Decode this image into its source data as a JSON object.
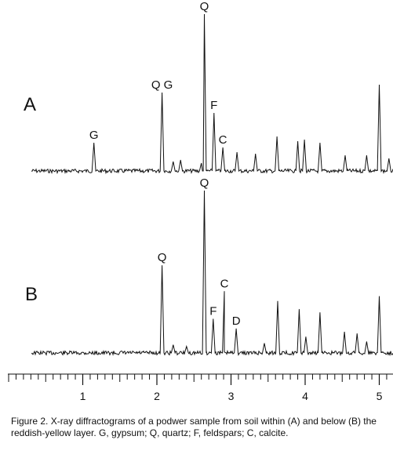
{
  "chart_data": {
    "type": "line",
    "title": "",
    "xlabel": "",
    "ylabel": "",
    "xlim": [
      0,
      5.2
    ],
    "x_ticks": [
      1,
      2,
      3,
      4,
      5
    ],
    "x_minor_step": 0.1,
    "grid": false,
    "line_color": "#111111",
    "panels": [
      {
        "label": "A",
        "peaks": [
          {
            "x": 1.15,
            "height": 0.18,
            "label": "G"
          },
          {
            "x": 2.07,
            "height": 0.5,
            "label": "Q G"
          },
          {
            "x": 2.22,
            "height": 0.06,
            "label": ""
          },
          {
            "x": 2.32,
            "height": 0.07,
            "label": ""
          },
          {
            "x": 2.6,
            "height": 0.05,
            "label": ""
          },
          {
            "x": 2.64,
            "height": 1.0,
            "label": "Q"
          },
          {
            "x": 2.77,
            "height": 0.37,
            "label": "F"
          },
          {
            "x": 2.89,
            "height": 0.15,
            "label": "C"
          },
          {
            "x": 3.08,
            "height": 0.12,
            "label": ""
          },
          {
            "x": 3.33,
            "height": 0.11,
            "label": ""
          },
          {
            "x": 3.62,
            "height": 0.22,
            "label": ""
          },
          {
            "x": 3.9,
            "height": 0.19,
            "label": ""
          },
          {
            "x": 3.99,
            "height": 0.2,
            "label": ""
          },
          {
            "x": 4.2,
            "height": 0.18,
            "label": ""
          },
          {
            "x": 4.54,
            "height": 0.1,
            "label": ""
          },
          {
            "x": 4.83,
            "height": 0.1,
            "label": ""
          },
          {
            "x": 5.0,
            "height": 0.55,
            "label": ""
          },
          {
            "x": 5.13,
            "height": 0.08,
            "label": ""
          }
        ]
      },
      {
        "label": "B",
        "peaks": [
          {
            "x": 2.07,
            "height": 0.54,
            "label": "Q"
          },
          {
            "x": 2.22,
            "height": 0.05,
            "label": ""
          },
          {
            "x": 2.4,
            "height": 0.04,
            "label": ""
          },
          {
            "x": 2.64,
            "height": 1.0,
            "label": "Q"
          },
          {
            "x": 2.76,
            "height": 0.21,
            "label": "F"
          },
          {
            "x": 2.91,
            "height": 0.38,
            "label": "C"
          },
          {
            "x": 3.07,
            "height": 0.15,
            "label": "D"
          },
          {
            "x": 3.45,
            "height": 0.06,
            "label": ""
          },
          {
            "x": 3.63,
            "height": 0.32,
            "label": ""
          },
          {
            "x": 3.92,
            "height": 0.27,
            "label": ""
          },
          {
            "x": 4.01,
            "height": 0.1,
            "label": ""
          },
          {
            "x": 4.2,
            "height": 0.25,
            "label": ""
          },
          {
            "x": 4.53,
            "height": 0.13,
            "label": ""
          },
          {
            "x": 4.7,
            "height": 0.12,
            "label": ""
          },
          {
            "x": 4.83,
            "height": 0.07,
            "label": ""
          },
          {
            "x": 5.0,
            "height": 0.35,
            "label": ""
          }
        ]
      }
    ]
  },
  "caption": "Figure 2.  X-ray diffractograms of a podwer sample from soil within (A) and below (B) the reddish-yellow layer. G, gypsum; Q, quartz; F, feldspars; C, calcite."
}
